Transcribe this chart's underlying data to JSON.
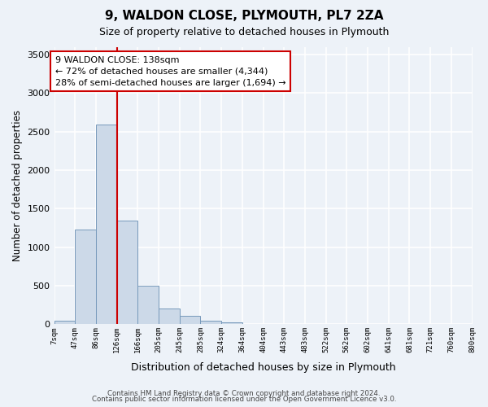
{
  "title": "9, WALDON CLOSE, PLYMOUTH, PL7 2ZA",
  "subtitle": "Size of property relative to detached houses in Plymouth",
  "xlabel": "Distribution of detached houses by size in Plymouth",
  "ylabel": "Number of detached properties",
  "bar_color": "#ccd9e8",
  "bar_edge_color": "#7799bb",
  "background_color": "#edf2f8",
  "grid_color": "#ffffff",
  "bins": [
    "7sqm",
    "47sqm",
    "86sqm",
    "126sqm",
    "166sqm",
    "205sqm",
    "245sqm",
    "285sqm",
    "324sqm",
    "364sqm",
    "404sqm",
    "443sqm",
    "483sqm",
    "522sqm",
    "562sqm",
    "602sqm",
    "641sqm",
    "681sqm",
    "721sqm",
    "760sqm",
    "800sqm"
  ],
  "values": [
    50,
    1230,
    2590,
    1350,
    495,
    200,
    110,
    50,
    30,
    0,
    0,
    0,
    0,
    0,
    0,
    0,
    0,
    0,
    0,
    0
  ],
  "ylim": [
    0,
    3600
  ],
  "yticks": [
    0,
    500,
    1000,
    1500,
    2000,
    2500,
    3000,
    3500
  ],
  "vline_x": 3.0,
  "vline_color": "#cc0000",
  "annotation_text": "9 WALDON CLOSE: 138sqm\n← 72% of detached houses are smaller (4,344)\n28% of semi-detached houses are larger (1,694) →",
  "annotation_box_color": "#ffffff",
  "annotation_box_edge_color": "#cc0000",
  "footer_line1": "Contains HM Land Registry data © Crown copyright and database right 2024.",
  "footer_line2": "Contains public sector information licensed under the Open Government Licence v3.0."
}
